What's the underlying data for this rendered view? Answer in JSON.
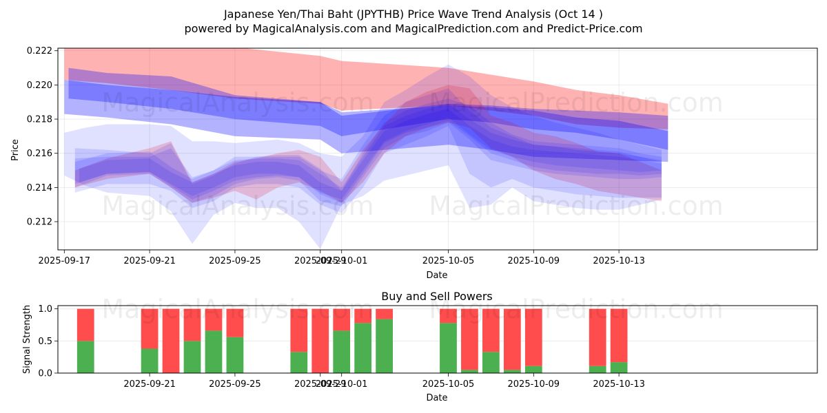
{
  "title": "Japanese Yen/Thai Baht (JPYTHB) Price Wave Trend Analysis (Oct 14 )",
  "subtitle": "powered by MagicalAnalysis.com and MagicalPrediction.com and Predict-Price.com",
  "watermarks": [
    "MagicalAnalysis.com",
    "MagicalPrediction.com",
    "MagicalAnalysis.com",
    "MagicalPrediction.com",
    "MagicalAnalysis.com",
    "MagicalPrediction.com"
  ],
  "colors": {
    "red": "#ff0000",
    "blue": "#0000ff",
    "buy": "#4caf50",
    "sell": "#ff4d4d"
  },
  "chart_data": [
    {
      "type": "area",
      "title": "",
      "xlabel": "Date",
      "ylabel": "Price",
      "xlim": [
        -0.3,
        35.3
      ],
      "ylim": [
        0.21035,
        0.22215
      ],
      "x_tick_labels": [
        "2025-09-17",
        "2025-09-21",
        "2025-09-25",
        "2025-09-29",
        "2025-10-01",
        "2025-10-05",
        "2025-10-09",
        "2025-10-13"
      ],
      "x_ticks": [
        0,
        4,
        8,
        12,
        13,
        18,
        22,
        26
      ],
      "y_ticks": [
        0.212,
        0.214,
        0.216,
        0.218,
        0.22,
        0.222
      ],
      "y_tick_labels": [
        "0.212",
        "0.214",
        "0.216",
        "0.218",
        "0.220",
        "0.222"
      ],
      "grid": true,
      "bands": [
        {
          "color": "red",
          "opacity": 0.3,
          "x": [
            0,
            2,
            5,
            8,
            12,
            13,
            18,
            20,
            22,
            24,
            26,
            28.3
          ],
          "upper": [
            0.2224,
            0.2225,
            0.2223,
            0.2222,
            0.2217,
            0.2214,
            0.221,
            0.2206,
            0.2202,
            0.2197,
            0.2194,
            0.2189
          ],
          "lower": [
            0.2203,
            0.2201,
            0.2197,
            0.2192,
            0.2189,
            0.2185,
            0.2188,
            0.2185,
            0.2182,
            0.2177,
            0.2175,
            0.2174
          ]
        },
        {
          "color": "blue",
          "opacity": 0.3,
          "x": [
            0,
            2,
            5,
            8,
            12,
            13,
            18,
            20,
            22,
            24,
            26,
            28.3
          ],
          "upper": [
            0.2203,
            0.22,
            0.2197,
            0.2193,
            0.219,
            0.2184,
            0.2188,
            0.2187,
            0.2185,
            0.2181,
            0.2179,
            0.2173
          ],
          "lower": [
            0.2183,
            0.2181,
            0.2177,
            0.217,
            0.2168,
            0.216,
            0.2165,
            0.2162,
            0.2158,
            0.2157,
            0.2156,
            0.2155
          ]
        },
        {
          "color": "blue",
          "opacity": 0.3,
          "x": [
            0.2,
            2,
            5,
            8,
            12,
            13,
            18,
            20,
            22,
            24,
            26,
            28.3
          ],
          "upper": [
            0.221,
            0.2207,
            0.2205,
            0.2194,
            0.219,
            0.2182,
            0.2189,
            0.2188,
            0.2186,
            0.2185,
            0.2184,
            0.2182
          ],
          "lower": [
            0.2192,
            0.219,
            0.2186,
            0.218,
            0.2176,
            0.217,
            0.218,
            0.2178,
            0.2174,
            0.2172,
            0.2168,
            0.2162
          ]
        },
        {
          "color": "red",
          "opacity": 0.18,
          "x": [
            0.5,
            2,
            4,
            5,
            6,
            7,
            8,
            9,
            10,
            11,
            12,
            13,
            14,
            15,
            16,
            17,
            18,
            19,
            20,
            21,
            22,
            23,
            24,
            25,
            26,
            27,
            28
          ],
          "upper": [
            0.215,
            0.2157,
            0.2163,
            0.2167,
            0.2143,
            0.2148,
            0.2155,
            0.2157,
            0.216,
            0.2162,
            0.2158,
            0.2143,
            0.2162,
            0.2177,
            0.219,
            0.2196,
            0.22,
            0.2198,
            0.2182,
            0.2178,
            0.2172,
            0.217,
            0.2166,
            0.2161,
            0.216,
            0.2155,
            0.215
          ],
          "lower": [
            0.214,
            0.2145,
            0.2148,
            0.214,
            0.2131,
            0.2134,
            0.2138,
            0.2133,
            0.214,
            0.2143,
            0.2138,
            0.2131,
            0.2143,
            0.216,
            0.217,
            0.2175,
            0.2178,
            0.2175,
            0.2163,
            0.2158,
            0.215,
            0.2145,
            0.2142,
            0.2138,
            0.2136,
            0.2134,
            0.2132
          ]
        },
        {
          "color": "blue",
          "opacity": 0.12,
          "x": [
            0,
            1,
            2,
            4,
            5,
            6,
            7,
            8,
            9,
            10,
            11,
            12,
            13,
            14,
            15,
            16,
            17,
            18,
            19,
            20,
            21,
            22,
            23,
            24,
            25,
            26,
            27,
            28
          ],
          "upper": [
            0.2172,
            0.2175,
            0.2177,
            0.2177,
            0.2176,
            0.2167,
            0.2167,
            0.2166,
            0.2167,
            0.2168,
            0.2166,
            0.216,
            0.2158,
            0.217,
            0.219,
            0.2197,
            0.2205,
            0.2212,
            0.2205,
            0.2194,
            0.2187,
            0.2182,
            0.2178,
            0.2175,
            0.2172,
            0.2168,
            0.2165,
            0.2162
          ],
          "lower": [
            0.2147,
            0.2141,
            0.2137,
            0.2135,
            0.2126,
            0.2107,
            0.2124,
            0.2131,
            0.2128,
            0.2128,
            0.212,
            0.2104,
            0.213,
            0.2135,
            0.2144,
            0.2147,
            0.215,
            0.2153,
            0.2128,
            0.213,
            0.214,
            0.2132,
            0.213,
            0.2128,
            0.2127,
            0.2127,
            0.213,
            0.2133
          ]
        },
        {
          "color": "blue",
          "opacity": 0.12,
          "x": [
            0.5,
            2,
            4,
            5,
            6,
            7,
            8,
            9,
            10,
            11,
            12,
            13,
            14,
            15,
            16,
            17,
            18,
            19,
            20,
            21,
            22,
            23,
            24,
            25,
            26,
            27,
            28
          ],
          "upper": [
            0.2163,
            0.2162,
            0.216,
            0.2166,
            0.2142,
            0.2147,
            0.2154,
            0.2158,
            0.2158,
            0.2158,
            0.215,
            0.2145,
            0.2165,
            0.2182,
            0.219,
            0.2194,
            0.2198,
            0.2185,
            0.2175,
            0.217,
            0.2165,
            0.2164,
            0.2162,
            0.2161,
            0.216,
            0.2158,
            0.2155
          ],
          "lower": [
            0.2137,
            0.2142,
            0.2142,
            0.2138,
            0.2128,
            0.2132,
            0.214,
            0.2142,
            0.2142,
            0.214,
            0.213,
            0.2125,
            0.214,
            0.216,
            0.2165,
            0.217,
            0.2176,
            0.2148,
            0.214,
            0.2145,
            0.214,
            0.2138,
            0.2136,
            0.2135,
            0.2134,
            0.2134,
            0.2134
          ]
        },
        {
          "color": "blue",
          "opacity": 0.12,
          "x": [
            0.5,
            2,
            4,
            5,
            6,
            7,
            8,
            9,
            10,
            11,
            12,
            13,
            14,
            15,
            16,
            17,
            18,
            19,
            20,
            21,
            22,
            23,
            24,
            25,
            26,
            27,
            28
          ],
          "upper": [
            0.2157,
            0.2158,
            0.2158,
            0.2163,
            0.2146,
            0.215,
            0.2158,
            0.2158,
            0.2159,
            0.2159,
            0.2151,
            0.2138,
            0.216,
            0.2178,
            0.2185,
            0.2189,
            0.2192,
            0.2188,
            0.2178,
            0.2171,
            0.2167,
            0.2166,
            0.2165,
            0.2164,
            0.2163,
            0.216,
            0.2158
          ],
          "lower": [
            0.214,
            0.2147,
            0.2148,
            0.214,
            0.2131,
            0.2135,
            0.2142,
            0.2145,
            0.2146,
            0.2144,
            0.2132,
            0.2129,
            0.2146,
            0.2163,
            0.217,
            0.2173,
            0.2178,
            0.2168,
            0.2156,
            0.2153,
            0.215,
            0.2148,
            0.2147,
            0.2146,
            0.2145,
            0.2145,
            0.2146
          ]
        },
        {
          "color": "blue",
          "opacity": 0.12,
          "x": [
            0.5,
            2,
            4,
            5,
            6,
            7,
            8,
            9,
            10,
            11,
            12,
            13,
            14,
            15,
            16,
            17,
            18,
            19,
            20,
            21,
            22,
            23,
            24,
            25,
            26,
            27,
            28
          ],
          "upper": [
            0.2155,
            0.216,
            0.2161,
            0.2152,
            0.2145,
            0.215,
            0.2156,
            0.2157,
            0.2157,
            0.2156,
            0.2148,
            0.214,
            0.2158,
            0.2176,
            0.2182,
            0.2186,
            0.2189,
            0.218,
            0.2172,
            0.2168,
            0.2165,
            0.2164,
            0.2163,
            0.2162,
            0.2161,
            0.2158,
            0.2156
          ],
          "lower": [
            0.2142,
            0.2148,
            0.2149,
            0.2141,
            0.2133,
            0.2138,
            0.2144,
            0.2146,
            0.2147,
            0.2146,
            0.2136,
            0.2131,
            0.2148,
            0.2166,
            0.2172,
            0.2175,
            0.2179,
            0.217,
            0.216,
            0.2156,
            0.2152,
            0.215,
            0.2149,
            0.2148,
            0.2148,
            0.2147,
            0.2148
          ]
        },
        {
          "color": "blue",
          "opacity": 0.12,
          "x": [
            0.7,
            2,
            4,
            5,
            6,
            7,
            8,
            9,
            10,
            11,
            12,
            13,
            14,
            15,
            16,
            17,
            18,
            19,
            20,
            21,
            22,
            23,
            24,
            25,
            26,
            27,
            28
          ],
          "upper": [
            0.2151,
            0.2156,
            0.2157,
            0.2149,
            0.2143,
            0.2148,
            0.2153,
            0.2155,
            0.2155,
            0.2153,
            0.2143,
            0.2138,
            0.2156,
            0.2173,
            0.2179,
            0.2183,
            0.2186,
            0.2176,
            0.2168,
            0.2164,
            0.2162,
            0.2161,
            0.216,
            0.2159,
            0.2158,
            0.2156,
            0.2154
          ],
          "lower": [
            0.2143,
            0.2148,
            0.2149,
            0.2142,
            0.2135,
            0.214,
            0.2146,
            0.2148,
            0.2148,
            0.2146,
            0.2137,
            0.2133,
            0.215,
            0.2167,
            0.2173,
            0.2177,
            0.2181,
            0.2171,
            0.2162,
            0.2158,
            0.2155,
            0.2153,
            0.2152,
            0.2151,
            0.215,
            0.2149,
            0.215
          ]
        }
      ]
    },
    {
      "type": "bar",
      "title": "Buy and Sell Powers",
      "xlabel": "Date",
      "ylabel": "Signal Strength",
      "xlim": [
        -0.3,
        35.3
      ],
      "ylim": [
        0,
        1.05
      ],
      "x_tick_labels": [
        "2025-09-21",
        "2025-09-25",
        "2025-09-29",
        "2025-10-01",
        "2025-10-05",
        "2025-10-09",
        "2025-10-13"
      ],
      "x_ticks": [
        4,
        8,
        12,
        13,
        18,
        22,
        26
      ],
      "y_ticks": [
        0,
        0.5,
        1
      ],
      "y_tick_labels": [
        "0.0",
        "0.5",
        "1.0"
      ],
      "grid": true,
      "x": [
        1,
        4,
        5,
        6,
        7,
        8,
        11,
        12,
        13,
        14,
        15,
        18,
        19,
        20,
        21,
        22,
        25,
        26
      ],
      "buy": [
        0.5,
        0.38,
        0.0,
        0.5,
        0.66,
        0.56,
        0.33,
        0.0,
        0.66,
        0.78,
        0.84,
        0.78,
        0.05,
        0.33,
        0.05,
        0.11,
        0.11,
        0.17
      ],
      "sell": [
        0.5,
        0.62,
        1.0,
        0.5,
        0.34,
        0.44,
        0.67,
        1.0,
        0.34,
        0.22,
        0.16,
        0.22,
        0.95,
        0.67,
        0.95,
        0.89,
        0.89,
        0.83
      ]
    }
  ]
}
